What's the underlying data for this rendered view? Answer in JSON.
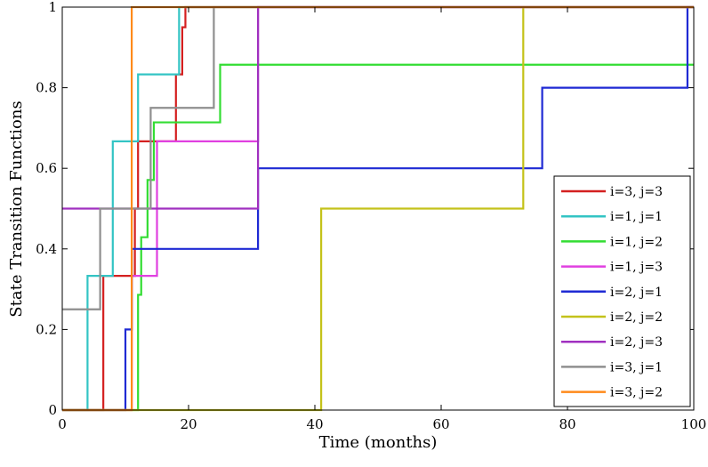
{
  "chart_data": {
    "type": "line",
    "step": true,
    "title": "",
    "xlabel": "Time (months)",
    "ylabel": "State Transition Functions",
    "xlim": [
      0,
      100
    ],
    "ylim": [
      0,
      1
    ],
    "xticks": [
      "0",
      "20",
      "40",
      "60",
      "80",
      "100"
    ],
    "yticks": [
      "0",
      "0.2",
      "0.4",
      "0.6",
      "0.8",
      "1"
    ],
    "grid": false,
    "legend_position": "bottom-right",
    "series": [
      {
        "name": "i=3, j=3",
        "color": "#d42020",
        "x": [
          0,
          6.5,
          11,
          11.5,
          12,
          17.5,
          18,
          19,
          19.5
        ],
        "y": [
          0,
          0.333,
          0.333,
          0.5,
          0.667,
          0.667,
          0.833,
          0.95,
          1.0
        ]
      },
      {
        "name": "i=1, j=1",
        "color": "#33c4c4",
        "x": [
          0,
          4,
          8,
          12,
          16,
          18.5
        ],
        "y": [
          0,
          0.333,
          0.667,
          0.833,
          0.833,
          1.0
        ]
      },
      {
        "name": "i=1, j=2",
        "color": "#33dd33",
        "x": [
          0,
          12,
          12.5,
          13.5,
          14.5,
          16.5,
          22,
          25,
          31
        ],
        "y": [
          0,
          0.286,
          0.429,
          0.571,
          0.714,
          0.714,
          0.714,
          0.857,
          0.857
        ]
      },
      {
        "name": "i=1, j=3",
        "color": "#e040e0",
        "x": [
          0,
          11,
          13,
          15,
          31,
          45,
          100
        ],
        "y": [
          0,
          0.333,
          0.333,
          0.667,
          1.0,
          1.0,
          1.0
        ]
      },
      {
        "name": "i=2, j=1",
        "color": "#1f2ad4",
        "x": [
          0,
          10,
          11,
          31,
          76,
          99
        ],
        "y": [
          0,
          0.2,
          0.4,
          0.6,
          0.8,
          1.0
        ]
      },
      {
        "name": "i=2, j=2",
        "color": "#c4c21a",
        "x": [
          0,
          41,
          73,
          100
        ],
        "y": [
          0,
          0.5,
          1.0,
          1.0
        ]
      },
      {
        "name": "i=2, j=3",
        "color": "#a030c0",
        "x": [
          0,
          31,
          100
        ],
        "y": [
          0.5,
          1.0,
          1.0
        ]
      },
      {
        "name": "i=3, j=1",
        "color": "#8f8f8f",
        "x": [
          0,
          6,
          12,
          14,
          24,
          100
        ],
        "y": [
          0.25,
          0.5,
          0.5,
          0.75,
          1.0,
          1.0
        ]
      },
      {
        "name": "i=3, j=2",
        "color": "#ff8a1a",
        "x": [
          0,
          11,
          100
        ],
        "y": [
          0,
          1.0,
          1.0
        ]
      }
    ]
  }
}
